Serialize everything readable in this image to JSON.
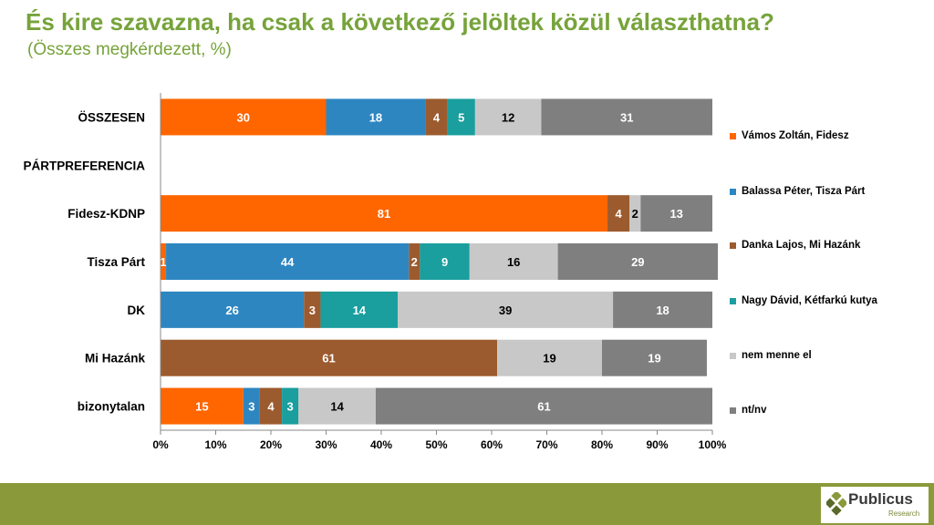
{
  "title": "És kire szavazna, ha csak a következő jelöltek közül választhatna?",
  "subtitle": "(Összes megkérdezett, %)",
  "logo": {
    "name": "Publicus",
    "sub": "Research"
  },
  "chart_data": {
    "type": "bar",
    "orientation": "horizontal",
    "stacked": "percent",
    "categories": [
      "ÖSSZESEN",
      "PÁRTPREFERENCIA",
      "Fidesz-KDNP",
      "Tisza Párt",
      "DK",
      "Mi Hazánk",
      "bizonytalan"
    ],
    "series": [
      {
        "name": "Vámos Zoltán, Fidesz",
        "color": "#ff6600",
        "label_color": "#ffffff",
        "values": [
          30,
          null,
          81,
          1,
          null,
          null,
          15
        ]
      },
      {
        "name": "Balassa Péter, Tisza Párt",
        "color": "#2e86c1",
        "label_color": "#ffffff",
        "values": [
          18,
          null,
          null,
          44,
          26,
          null,
          3
        ]
      },
      {
        "name": "Danka Lajos, Mi Hazánk",
        "color": "#9c5b2e",
        "label_color": "#ffffff",
        "values": [
          4,
          null,
          4,
          2,
          3,
          61,
          4
        ]
      },
      {
        "name": "Nagy Dávid, Kétfarkú kutya",
        "color": "#1a9e9e",
        "label_color": "#ffffff",
        "values": [
          5,
          null,
          null,
          9,
          14,
          null,
          3
        ]
      },
      {
        "name": "nem menne el",
        "color": "#c8c8c8",
        "label_color": "#000000",
        "values": [
          12,
          null,
          2,
          16,
          39,
          19,
          14
        ]
      },
      {
        "name": "nt/nv",
        "color": "#7f7f7f",
        "label_color": "#ffffff",
        "values": [
          31,
          null,
          13,
          29,
          18,
          19,
          61
        ]
      }
    ],
    "x_ticks": [
      "0%",
      "10%",
      "20%",
      "30%",
      "40%",
      "50%",
      "60%",
      "70%",
      "80%",
      "90%",
      "100%"
    ],
    "xlim": [
      0,
      100
    ],
    "grid": false,
    "legend_position": "right"
  }
}
